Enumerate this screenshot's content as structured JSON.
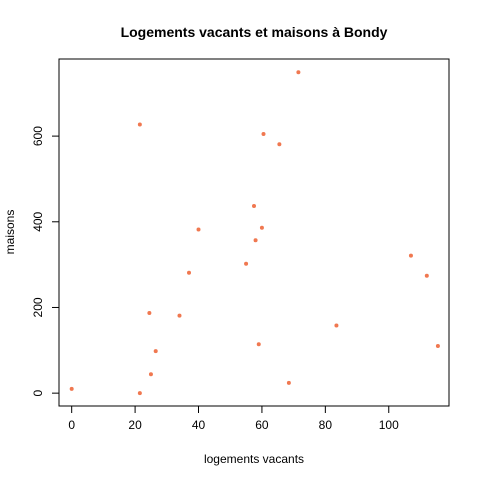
{
  "chart_data": {
    "type": "scatter",
    "title": "Logements vacants et maisons à Bondy",
    "xlabel": "logements vacants",
    "ylabel": "maisons",
    "xlim": [
      -4,
      119
    ],
    "ylim": [
      -30,
      780
    ],
    "xticks": [
      0,
      20,
      40,
      60,
      80,
      100
    ],
    "yticks": [
      0,
      200,
      400,
      600
    ],
    "grid": false,
    "point_color": "#F07850",
    "points": [
      {
        "x": 0,
        "y": 10
      },
      {
        "x": 21.5,
        "y": 0
      },
      {
        "x": 21.5,
        "y": 627
      },
      {
        "x": 24.5,
        "y": 187
      },
      {
        "x": 25,
        "y": 44
      },
      {
        "x": 26.5,
        "y": 98
      },
      {
        "x": 34,
        "y": 181
      },
      {
        "x": 37,
        "y": 281
      },
      {
        "x": 40,
        "y": 382
      },
      {
        "x": 55,
        "y": 302
      },
      {
        "x": 57.5,
        "y": 437
      },
      {
        "x": 58,
        "y": 357
      },
      {
        "x": 59,
        "y": 114
      },
      {
        "x": 60,
        "y": 386
      },
      {
        "x": 60.5,
        "y": 605
      },
      {
        "x": 65.5,
        "y": 581
      },
      {
        "x": 68.5,
        "y": 24
      },
      {
        "x": 71.5,
        "y": 749
      },
      {
        "x": 83.5,
        "y": 158
      },
      {
        "x": 107,
        "y": 321
      },
      {
        "x": 112,
        "y": 274
      },
      {
        "x": 115.5,
        "y": 110
      }
    ]
  }
}
